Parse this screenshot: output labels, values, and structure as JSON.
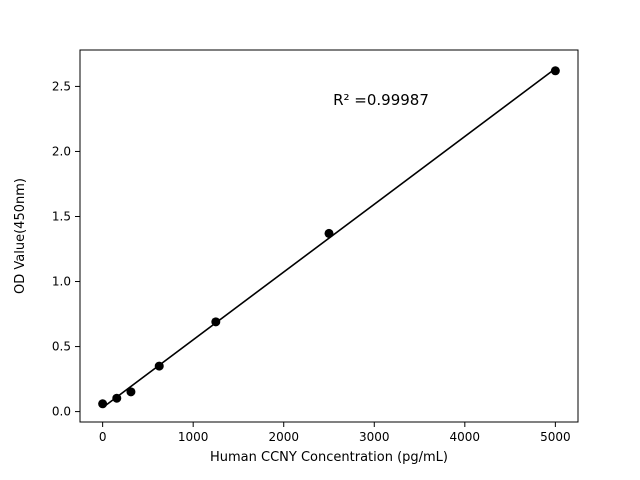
{
  "chart_data": {
    "type": "scatter",
    "title": "",
    "xlabel": "Human CCNY Concentration (pg/mL)",
    "ylabel": "OD Value(450nm)",
    "annotation": "R² =0.99987",
    "x": [
      0,
      156.25,
      312.5,
      625,
      1250,
      2500,
      5000
    ],
    "y": [
      0.06,
      0.103,
      0.152,
      0.35,
      0.69,
      1.37,
      2.62
    ],
    "xticks": [
      0,
      1000,
      2000,
      3000,
      4000,
      5000
    ],
    "yticks": [
      0.0,
      0.5,
      1.0,
      1.5,
      2.0,
      2.5
    ],
    "xlim": [
      -250,
      5250
    ],
    "ylim": [
      -0.08,
      2.78
    ],
    "fit_line": true,
    "legend": "none",
    "grid": false,
    "colors": {
      "background": "#ffffff",
      "line": "#000000",
      "marker": "#000000",
      "axis": "#000000"
    }
  }
}
